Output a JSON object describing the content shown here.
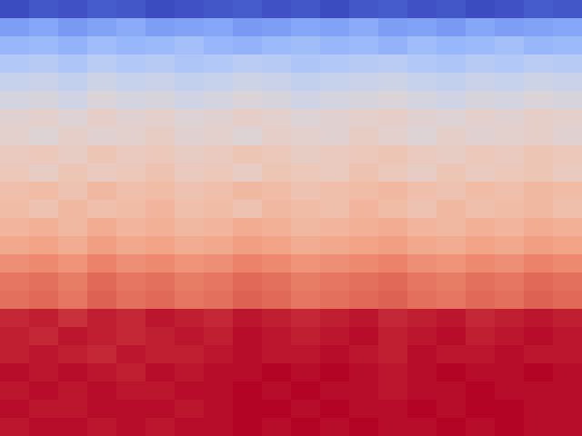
{
  "chart_data": {
    "type": "heatmap",
    "tick_labels": false,
    "cells": [
      [
        -78,
        -76,
        -77,
        -75,
        -76,
        -78,
        -77,
        -76,
        -75,
        -77,
        -76,
        -78,
        -76,
        -75,
        -77,
        -76,
        -78,
        -77,
        -75,
        -76
      ],
      [
        -62,
        -60,
        -63,
        -61,
        -59,
        -62,
        -61,
        -60,
        -63,
        -62,
        -60,
        -61,
        -59,
        -62,
        -61,
        -63,
        -60,
        -62,
        -61,
        -60
      ],
      [
        -56,
        -55,
        -57,
        -54,
        -56,
        -55,
        -53,
        -56,
        -57,
        -55,
        -54,
        -56,
        -55,
        -57,
        -54,
        -56,
        -55,
        -53,
        -56,
        -55
      ],
      [
        -50,
        -49,
        -51,
        -48,
        -50,
        -49,
        -51,
        -50,
        -48,
        -49,
        -51,
        -50,
        -49,
        -48,
        -50,
        -51,
        -49,
        -50,
        -48,
        -49
      ],
      [
        -45,
        -44,
        -46,
        -43,
        -45,
        -44,
        -46,
        -45,
        -43,
        -44,
        -46,
        -45,
        -44,
        -43,
        -45,
        -46,
        -44,
        -45,
        -43,
        -44
      ],
      [
        -41,
        -40,
        -42,
        -39,
        -41,
        -40,
        -42,
        -41,
        -39,
        -40,
        -42,
        -41,
        -40,
        -39,
        -41,
        -42,
        -40,
        -41,
        -39,
        -40
      ],
      [
        -37,
        -36,
        -38,
        -35,
        -37,
        -36,
        -38,
        -37,
        -35,
        -36,
        -38,
        -37,
        -36,
        -35,
        -37,
        -38,
        -36,
        -37,
        -35,
        -36
      ],
      [
        -36,
        -38,
        -35,
        -37,
        -36,
        -34,
        -37,
        -36,
        -38,
        -35,
        -36,
        -37,
        -34,
        -36,
        -38,
        -35,
        -37,
        -36,
        -35,
        -37
      ],
      [
        -33,
        -32,
        -34,
        -31,
        -33,
        -32,
        -34,
        -33,
        -31,
        -32,
        -34,
        -33,
        -32,
        -31,
        -33,
        -34,
        -32,
        -33,
        -31,
        -32
      ],
      [
        -32,
        -34,
        -31,
        -33,
        -32,
        -30,
        -33,
        -32,
        -34,
        -31,
        -32,
        -33,
        -30,
        -32,
        -34,
        -31,
        -33,
        -32,
        -31,
        -33
      ],
      [
        -29,
        -28,
        -30,
        -27,
        -29,
        -28,
        -30,
        -29,
        -27,
        -28,
        -30,
        -29,
        -28,
        -27,
        -29,
        -30,
        -28,
        -29,
        -27,
        -28
      ],
      [
        -28,
        -30,
        -27,
        -29,
        -28,
        -26,
        -29,
        -28,
        -30,
        -27,
        -28,
        -29,
        -26,
        -28,
        -30,
        -27,
        -29,
        -28,
        -27,
        -29
      ],
      [
        -26,
        -25,
        -27,
        -24,
        -26,
        -25,
        -27,
        -26,
        -24,
        -25,
        -27,
        -26,
        -25,
        -24,
        -26,
        -27,
        -25,
        -26,
        -24,
        -25
      ],
      [
        -23,
        -22,
        -24,
        -21,
        -23,
        -22,
        -24,
        -23,
        -21,
        -22,
        -24,
        -23,
        -22,
        -21,
        -23,
        -24,
        -22,
        -23,
        -21,
        -22
      ],
      [
        -18,
        -17,
        -19,
        -16,
        -18,
        -17,
        -19,
        -18,
        -16,
        -17,
        -19,
        -18,
        -17,
        -16,
        -18,
        -19,
        -17,
        -18,
        -16,
        -17
      ],
      [
        -14,
        -13,
        -15,
        -12,
        -14,
        -13,
        -15,
        -14,
        -12,
        -13,
        -15,
        -14,
        -13,
        -12,
        -14,
        -15,
        -13,
        -14,
        -12,
        -13
      ],
      [
        -13,
        -12,
        -14,
        -11,
        -13,
        -12,
        -14,
        -13,
        -11,
        -12,
        -14,
        -13,
        -12,
        -11,
        -13,
        -14,
        -12,
        -13,
        -11,
        -12
      ],
      [
        -4,
        -3,
        -5,
        -3,
        -4,
        -2,
        -3,
        -4,
        -2,
        -3,
        -4,
        -3,
        -2,
        -4,
        -3,
        -2,
        -4,
        -3,
        -2,
        -3
      ],
      [
        -3,
        -4,
        -2,
        -3,
        -4,
        -3,
        -2,
        -3,
        -1,
        -2,
        -3,
        -2,
        -1,
        -3,
        -2,
        -1,
        -3,
        -2,
        -1,
        -2
      ],
      [
        -3,
        -2,
        -3,
        -4,
        -2,
        -3,
        -3,
        -2,
        -1,
        -2,
        -2,
        -1,
        -2,
        -3,
        -1,
        -2,
        -2,
        -1,
        -2,
        -2
      ],
      [
        -1,
        -2,
        -1,
        -2,
        -3,
        -1,
        -2,
        -1,
        -1,
        0,
        -1,
        0,
        -1,
        -2,
        -1,
        0,
        -1,
        -1,
        0,
        -1
      ],
      [
        -2,
        -1,
        -2,
        -1,
        -2,
        -2,
        -1,
        -1,
        0,
        -1,
        0,
        -1,
        -1,
        -2,
        -1,
        -1,
        0,
        -1,
        -1,
        -1
      ],
      [
        -1,
        -2,
        -2,
        -1,
        -1,
        -1,
        -2,
        -1,
        0,
        0,
        -1,
        0,
        -1,
        -1,
        0,
        -1,
        0,
        0,
        -1,
        -1
      ],
      [
        -2,
        -1,
        -1,
        -2,
        -1,
        -2,
        -1,
        -1,
        0,
        -1,
        0,
        -1,
        0,
        -1,
        -1,
        0,
        -1,
        0,
        -1,
        -1
      ]
    ]
  }
}
